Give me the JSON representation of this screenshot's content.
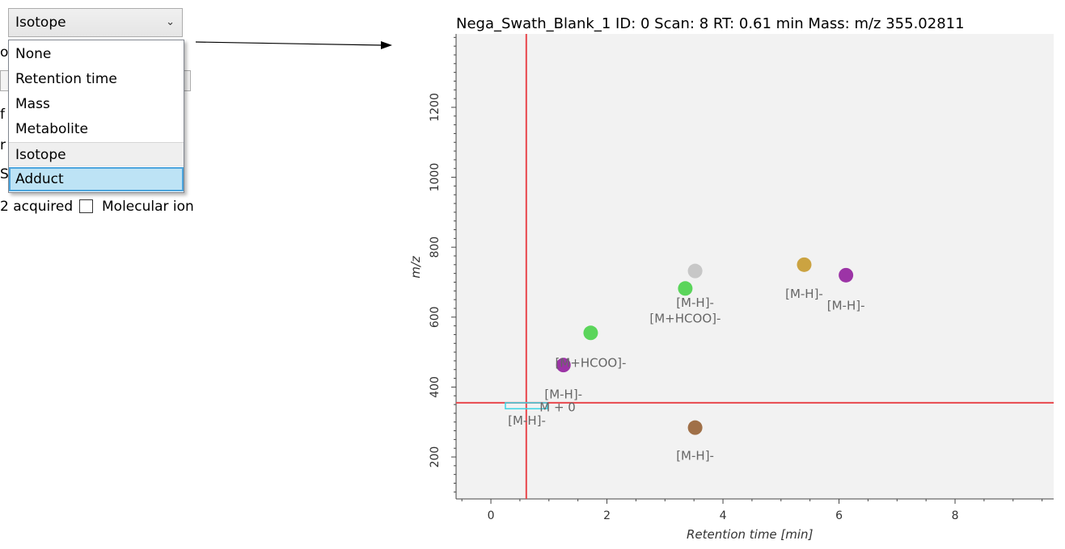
{
  "left_panel": {
    "combo": {
      "selected": "Isotope",
      "chevron": "⌄"
    },
    "dropdown_options": [
      "None",
      "Retention time",
      "Mass",
      "Metabolite",
      "Isotope",
      "Adduct"
    ],
    "hovered_option": "Isotope",
    "selected_option": "Adduct",
    "behind": {
      "text_a": "oc",
      "text_b": "f",
      "text_c": "r",
      "text_d": "S",
      "ms2_acquired_label": "2 acquired",
      "molecular_ion_label": "Molecular ion"
    }
  },
  "chart_title": "Nega_Swath_Blank_1  ID: 0  Scan: 8  RT: 0.61 min  Mass: m/z 355.02811",
  "chart_data": {
    "type": "scatter",
    "title": "Nega_Swath_Blank_1  ID: 0  Scan: 8  RT: 0.61 min  Mass: m/z 355.02811",
    "xlabel": "Retention time [min]",
    "ylabel": "m/z",
    "xlim": [
      -0.6,
      9.7
    ],
    "ylim": [
      80,
      1410
    ],
    "xticks": [
      0,
      2,
      4,
      6,
      8
    ],
    "yticks": [
      200,
      400,
      600,
      800,
      1000,
      1200
    ],
    "crosshair": {
      "x": 0.61,
      "y": 355.02811,
      "color": "#e8474c"
    },
    "points": [
      {
        "x": 1.25,
        "y": 463,
        "color": "#9c34a6"
      },
      {
        "x": 1.72,
        "y": 555,
        "color": "#5bd55b"
      },
      {
        "x": 3.35,
        "y": 682,
        "color": "#5bd55b"
      },
      {
        "x": 3.52,
        "y": 732,
        "color": "#c7c7c7"
      },
      {
        "x": 3.52,
        "y": 284,
        "color": "#a07048"
      },
      {
        "x": 5.4,
        "y": 750,
        "color": "#cba341"
      },
      {
        "x": 6.12,
        "y": 720,
        "color": "#9c34a6"
      }
    ],
    "annotations": [
      {
        "text": "[M+HCOO]-",
        "x": 1.72,
        "y": 457
      },
      {
        "text": "[M-H]-",
        "x": 1.25,
        "y": 368
      },
      {
        "text": "M + 0",
        "x": 1.15,
        "y": 330
      },
      {
        "text": "[M-H]-",
        "x": 0.62,
        "y": 292
      },
      {
        "text": "[M-H]-",
        "x": 3.52,
        "y": 192
      },
      {
        "text": "[M-H]-",
        "x": 3.52,
        "y": 630
      },
      {
        "text": "[M+HCOO]-",
        "x": 3.35,
        "y": 585
      },
      {
        "text": "[M-H]-",
        "x": 5.4,
        "y": 655
      },
      {
        "text": "[M-H]-",
        "x": 6.12,
        "y": 622
      }
    ],
    "highlight_box": {
      "x": [
        0.25,
        0.97
      ],
      "y": [
        338,
        355
      ],
      "color": "#3cd6e6"
    }
  }
}
